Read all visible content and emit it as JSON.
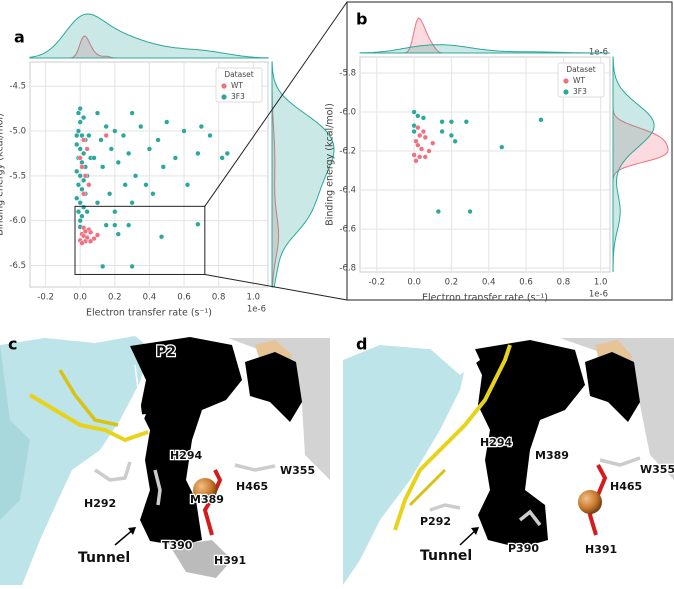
{
  "chart_data": [
    {
      "type": "scatter",
      "panel": "a",
      "x_label": "Electron transfer rate (s⁻¹)",
      "y_label": "Binding energy (kcal/mol)",
      "x_offset_label": "1e-6",
      "xlim": [
        -0.29,
        1.085
      ],
      "ylim": [
        -6.74,
        -4.23
      ],
      "xticks": [
        -0.2,
        {
          "value": 0,
          "label": "0.0"
        },
        0.2,
        0.4,
        0.6,
        0.8,
        {
          "value": 1,
          "label": "1.0"
        }
      ],
      "yticks": [
        -4.5,
        {
          "value": -5,
          "label": "-5.0"
        },
        -5.5,
        {
          "value": -6,
          "label": "-6.0"
        },
        -6.5
      ],
      "grid": true,
      "marginals": true,
      "legend_title": "Dataset",
      "legend_loc": "upper right",
      "inset_box": {
        "x": [
          -0.03,
          0.72
        ],
        "y": [
          -6.6,
          -5.84
        ]
      },
      "series": [
        {
          "name": "WT",
          "color": "#f0707f",
          "x": [
            0.02,
            0.05,
            0.03,
            0.06,
            0.01,
            0.02,
            0.1,
            0.04,
            0.08,
            0,
            0.03,
            0.06,
            0.01,
            0.02,
            0.04,
            0.01,
            0.03,
            0.05,
            0.02,
            0,
            0.15
          ],
          "values": [
            -6.08,
            -6.1,
            -6.12,
            -6.13,
            -6.15,
            -6.17,
            -6.16,
            -6.19,
            -6.2,
            -6.22,
            -6.23,
            -6.23,
            -6.25,
            -5.1,
            -5.2,
            -5.4,
            -5.5,
            -5.6,
            -5.7,
            -5.3,
            -5.05
          ]
        },
        {
          "name": "3F3",
          "color": "#2ca89a",
          "x": [
            -0.01,
            0,
            0.02,
            -0.01,
            0.01,
            0.03,
            -0.02,
            0,
            0.02,
            -0.01,
            0.01,
            0.03,
            -0.02,
            0,
            0.02,
            -0.01,
            0.01,
            0.03,
            -0.02,
            0,
            0.02,
            -0.01,
            0.01,
            0,
            0.05,
            0.06,
            0.05,
            0.04,
            0.1,
            0.15,
            0.12,
            0.2,
            0.18,
            0.25,
            0.3,
            0.35,
            0.08,
            0.13,
            0.22,
            0.28,
            0.32,
            0.4,
            0.45,
            0.5,
            0.55,
            0.6,
            0.7,
            0.75,
            0.82,
            0.85,
            0.68,
            0.62,
            0.48,
            0.38,
            0.26,
            0.17,
            0.1,
            0.2,
            0.3,
            0.42,
            0.15,
            0.2,
            0.28,
            0.22,
            0.47,
            0.68,
            0.13,
            0.3,
            0,
            -0.02,
            0.04,
            0
          ],
          "values": [
            -4.8,
            -4.9,
            -4.85,
            -5,
            -5.05,
            -5.1,
            -5.15,
            -5.2,
            -5.25,
            -5.3,
            -5.35,
            -5.4,
            -5.45,
            -5.5,
            -5.55,
            -5.6,
            -5.65,
            -5.7,
            -5.75,
            -5.8,
            -5.85,
            -5.9,
            -5.95,
            -6,
            -5.05,
            -5.3,
            -5.6,
            -5.9,
            -4.8,
            -4.95,
            -5.1,
            -5,
            -5.2,
            -5.05,
            -4.8,
            -4.95,
            -5.3,
            -5.4,
            -5.35,
            -5.25,
            -5.5,
            -5.2,
            -5.1,
            -4.9,
            -5.3,
            -5,
            -4.95,
            -5.05,
            -5.3,
            -5.25,
            -5.25,
            -5.6,
            -5.4,
            -5.6,
            -5.6,
            -5.7,
            -5.8,
            -5.9,
            -5.8,
            -5.7,
            -6.05,
            -6.05,
            -6.05,
            -6.15,
            -6.18,
            -6.04,
            -6.51,
            -6.51,
            -6.07,
            -5.05,
            -5.5,
            -4.75
          ]
        }
      ]
    },
    {
      "type": "scatter",
      "panel": "b",
      "x_label": "Electron transfer rate (s⁻¹)",
      "y_label": "Binding energy (kcal/mol)",
      "x_offset_label": "1e-6",
      "top_offset_label": "1e-6",
      "xlim": [
        -0.29,
        1.05
      ],
      "ylim": [
        -6.82,
        -5.718
      ],
      "xticks": [
        -0.2,
        {
          "value": 0,
          "label": "0.0"
        },
        0.2,
        0.4,
        0.6,
        0.8,
        {
          "value": 1,
          "label": "1.0"
        }
      ],
      "yticks": [
        -5.8,
        {
          "value": -6,
          "label": "-6.0"
        },
        -6.2,
        -6.4,
        -6.6,
        -6.8
      ],
      "grid": true,
      "marginals": true,
      "legend_title": "Dataset",
      "legend_loc": "upper right",
      "series": [
        {
          "name": "WT",
          "color": "#f0707f",
          "x": [
            0.02,
            0.05,
            0.03,
            0.06,
            0.01,
            0.02,
            0.1,
            0.04,
            0.08,
            0,
            0.03,
            0.06,
            0.01
          ],
          "values": [
            -6.08,
            -6.1,
            -6.12,
            -6.13,
            -6.15,
            -6.17,
            -6.16,
            -6.19,
            -6.2,
            -6.22,
            -6.23,
            -6.23,
            -6.25
          ]
        },
        {
          "name": "3F3",
          "color": "#2ca89a",
          "x": [
            0,
            0.02,
            0.05,
            0,
            0.15,
            0.2,
            0.28,
            0.15,
            0.2,
            0.22,
            0.47,
            0.68,
            0.13,
            0.3,
            0
          ],
          "values": [
            -6,
            -6.02,
            -6.03,
            -6.1,
            -6.05,
            -6.05,
            -6.05,
            -6.1,
            -6.12,
            -6.15,
            -6.18,
            -6.04,
            -6.51,
            -6.51,
            -6.07
          ]
        }
      ]
    }
  ],
  "panels": [
    {
      "label": "c",
      "annotations": [
        "P2",
        "H294",
        "H292",
        "M389",
        "H465",
        "W355",
        "T390",
        "H391",
        "Tunnel"
      ]
    },
    {
      "label": "d",
      "annotations": [
        "H294",
        "M389",
        "W355",
        "H465",
        "P292",
        "P390",
        "H391",
        "Tunnel"
      ]
    }
  ]
}
